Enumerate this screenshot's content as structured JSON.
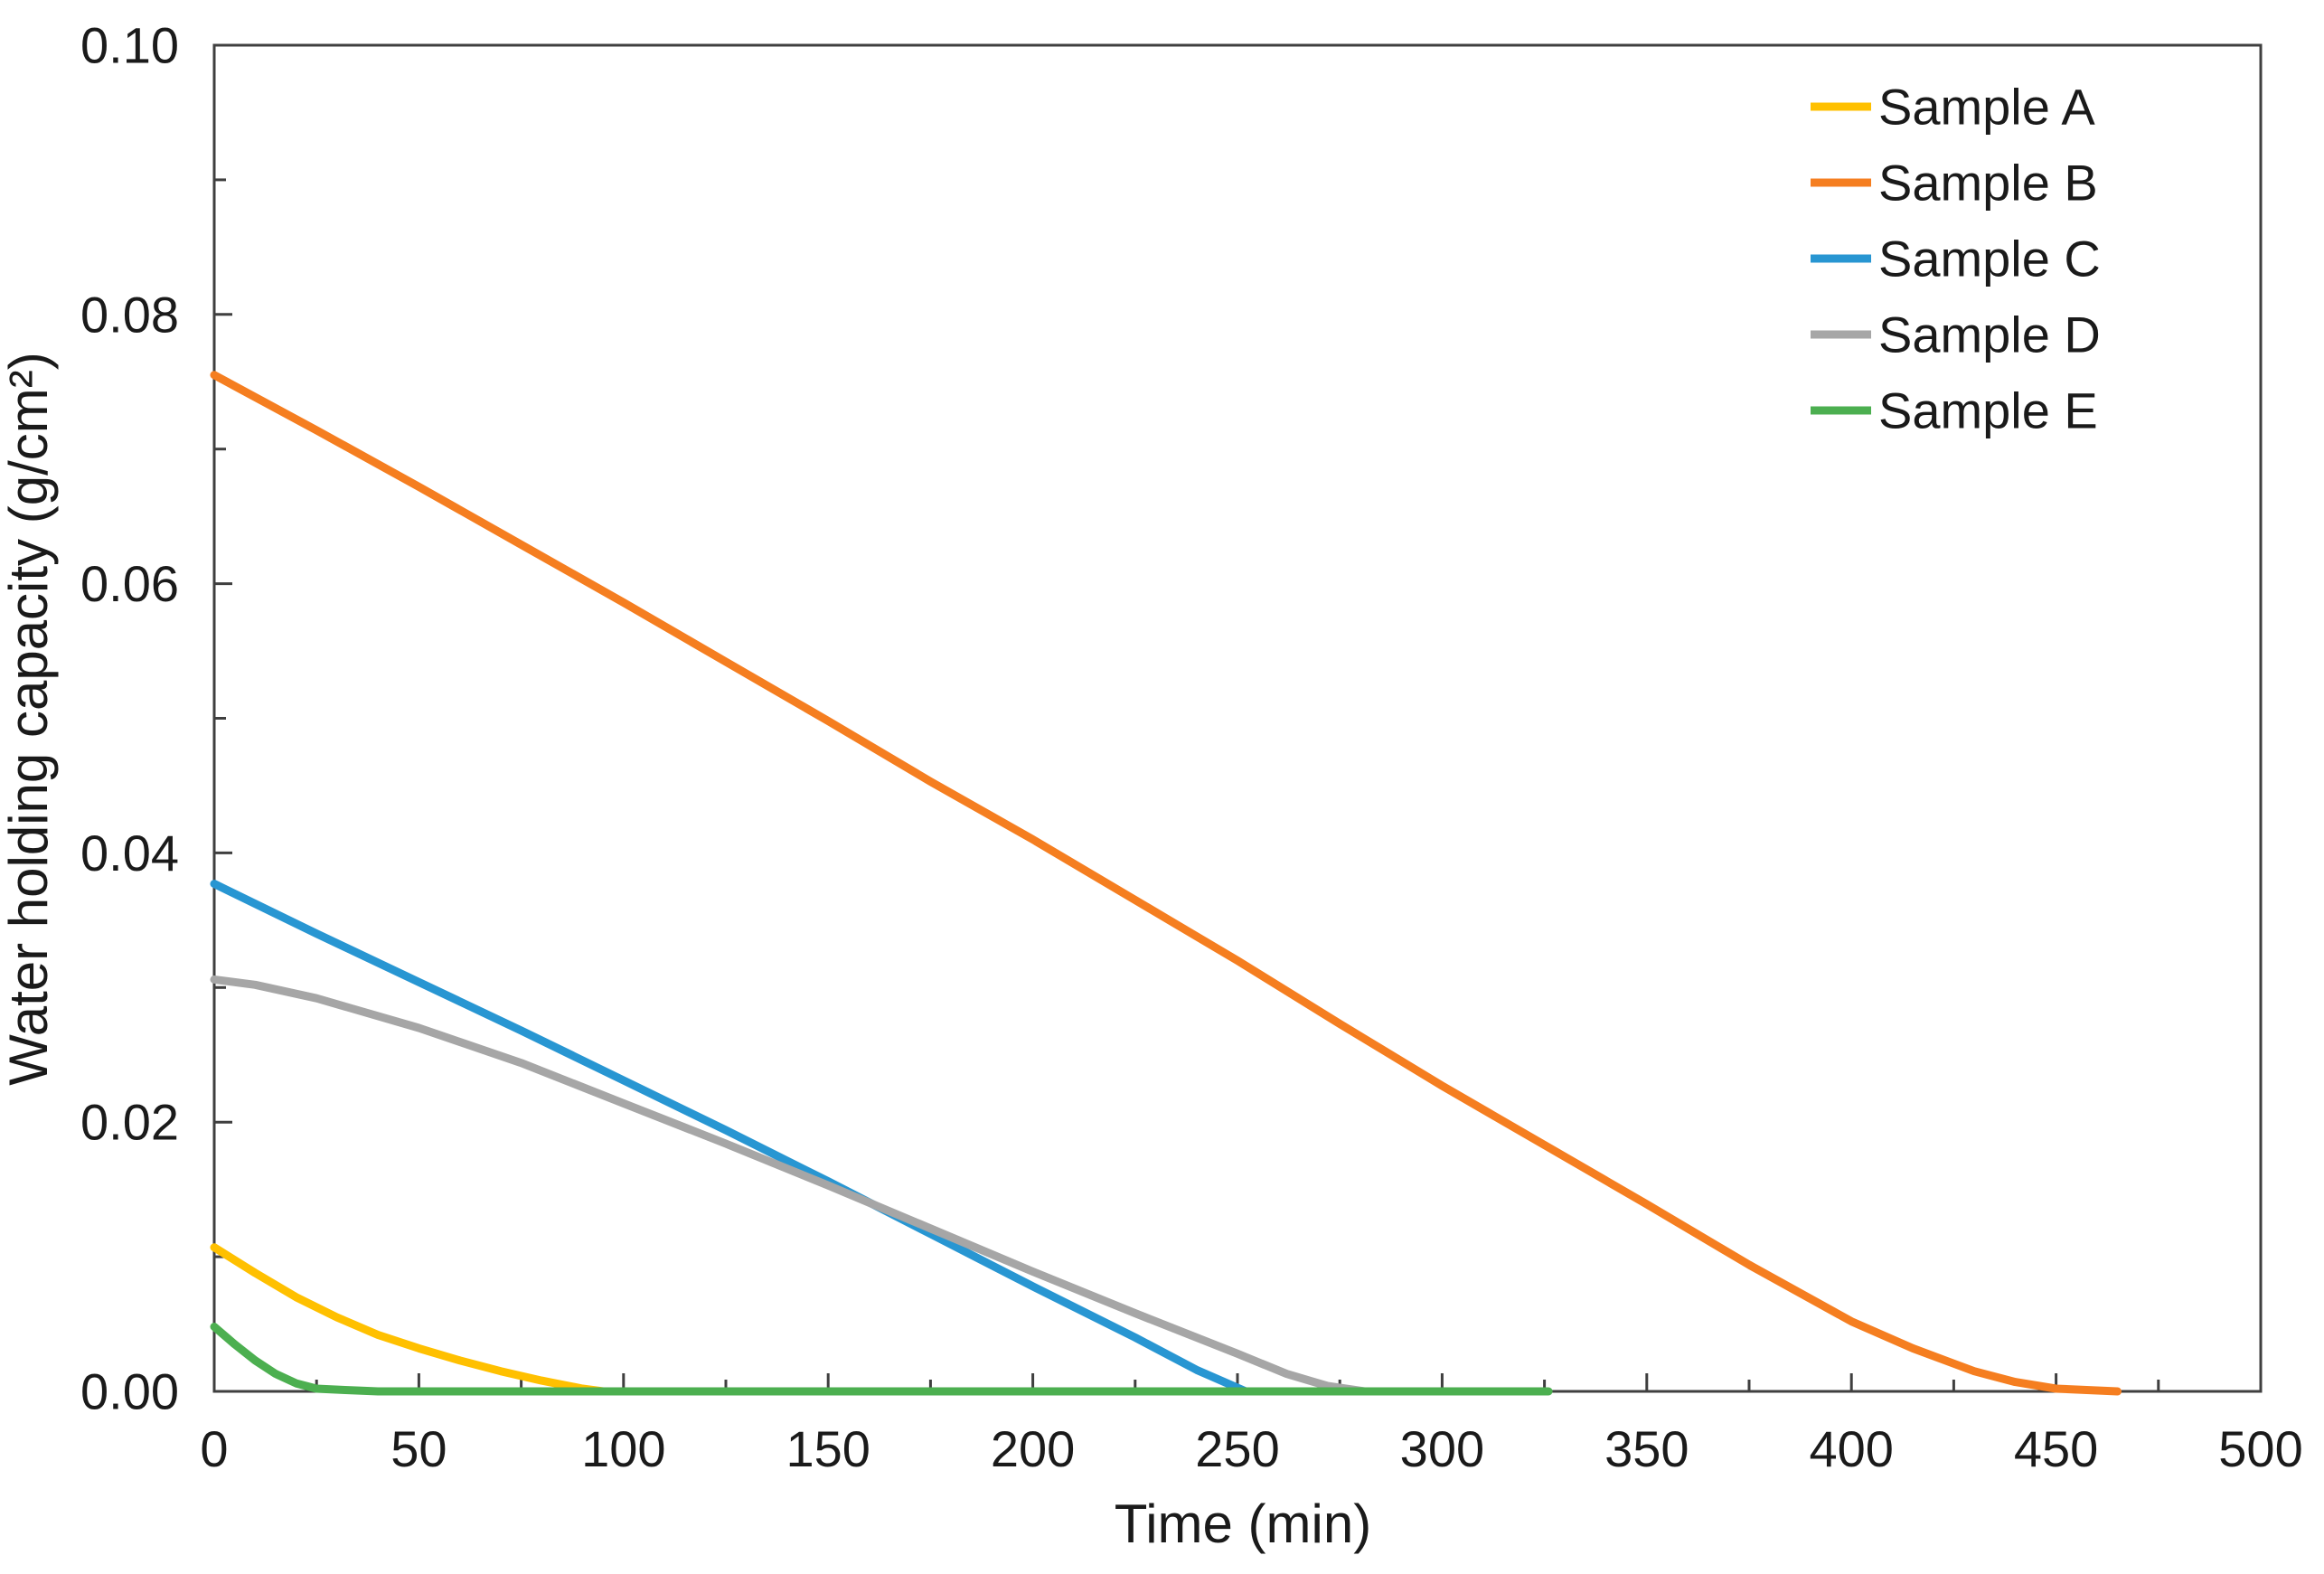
{
  "chart_data": {
    "type": "line",
    "title": "",
    "xlabel": "Time (min)",
    "ylabel": "Water holding capacity (g/cm²)",
    "xlim": [
      0,
      500
    ],
    "ylim": [
      0,
      0.1
    ],
    "x_major_ticks": [
      0,
      50,
      100,
      150,
      200,
      250,
      300,
      350,
      400,
      450,
      500
    ],
    "x_major_labels": [
      "0",
      "50",
      "100",
      "150",
      "200",
      "250",
      "300",
      "350",
      "400",
      "450",
      "500"
    ],
    "x_minor_step": 25,
    "y_major_ticks": [
      0,
      0.02,
      0.04,
      0.06,
      0.08,
      0.1
    ],
    "y_major_labels": [
      "0.00",
      "0.02",
      "0.04",
      "0.06",
      "0.08",
      "0.10"
    ],
    "y_minor_step": 0.01,
    "grid": "off",
    "legend_position": "top-right-inside",
    "axis_color": "#3F3F3F",
    "text_color": "#1A1A1A",
    "background_color": "#FFFFFF",
    "series": [
      {
        "name": "Sample A",
        "color": "#FFC000",
        "points": [
          [
            0,
            0.0107
          ],
          [
            10,
            0.0088
          ],
          [
            20,
            0.007
          ],
          [
            30,
            0.0055
          ],
          [
            40,
            0.0042
          ],
          [
            50,
            0.0032
          ],
          [
            60,
            0.0023
          ],
          [
            70,
            0.0015
          ],
          [
            80,
            0.0008
          ],
          [
            90,
            0.0002
          ],
          [
            95,
            0.0
          ]
        ]
      },
      {
        "name": "Sample B",
        "color": "#F57E20",
        "points": [
          [
            0,
            0.0755
          ],
          [
            25,
            0.0714
          ],
          [
            50,
            0.0672
          ],
          [
            75,
            0.0629
          ],
          [
            100,
            0.0586
          ],
          [
            125,
            0.0542
          ],
          [
            150,
            0.0498
          ],
          [
            175,
            0.0453
          ],
          [
            200,
            0.041
          ],
          [
            225,
            0.0365
          ],
          [
            250,
            0.032
          ],
          [
            275,
            0.0273
          ],
          [
            300,
            0.0227
          ],
          [
            325,
            0.0183
          ],
          [
            350,
            0.0139
          ],
          [
            375,
            0.0094
          ],
          [
            400,
            0.0052
          ],
          [
            415,
            0.0032
          ],
          [
            430,
            0.0015
          ],
          [
            440,
            0.0007
          ],
          [
            450,
            0.0002
          ],
          [
            465,
            0.0
          ]
        ]
      },
      {
        "name": "Sample C",
        "color": "#2896D2",
        "points": [
          [
            0,
            0.0377
          ],
          [
            25,
            0.034
          ],
          [
            50,
            0.0304
          ],
          [
            75,
            0.0268
          ],
          [
            100,
            0.0231
          ],
          [
            125,
            0.0194
          ],
          [
            150,
            0.0156
          ],
          [
            175,
            0.0117
          ],
          [
            200,
            0.0078
          ],
          [
            225,
            0.004
          ],
          [
            240,
            0.0016
          ],
          [
            252,
            0.0
          ]
        ]
      },
      {
        "name": "Sample D",
        "color": "#A6A6A6",
        "points": [
          [
            0,
            0.0306
          ],
          [
            10,
            0.0302
          ],
          [
            25,
            0.0292
          ],
          [
            50,
            0.027
          ],
          [
            75,
            0.0244
          ],
          [
            100,
            0.0214
          ],
          [
            125,
            0.0184
          ],
          [
            150,
            0.0153
          ],
          [
            175,
            0.0121
          ],
          [
            200,
            0.0089
          ],
          [
            225,
            0.0058
          ],
          [
            250,
            0.0028
          ],
          [
            262,
            0.0013
          ],
          [
            272,
            0.0004
          ],
          [
            281,
            0.0
          ]
        ]
      },
      {
        "name": "Sample E",
        "color": "#4CAF50",
        "points": [
          [
            0,
            0.0048
          ],
          [
            5,
            0.0035
          ],
          [
            10,
            0.0023
          ],
          [
            15,
            0.0013
          ],
          [
            20,
            0.0006
          ],
          [
            25,
            0.0002
          ],
          [
            32,
            0.0001
          ],
          [
            40,
            0.0
          ],
          [
            326,
            0.0
          ]
        ]
      }
    ]
  }
}
